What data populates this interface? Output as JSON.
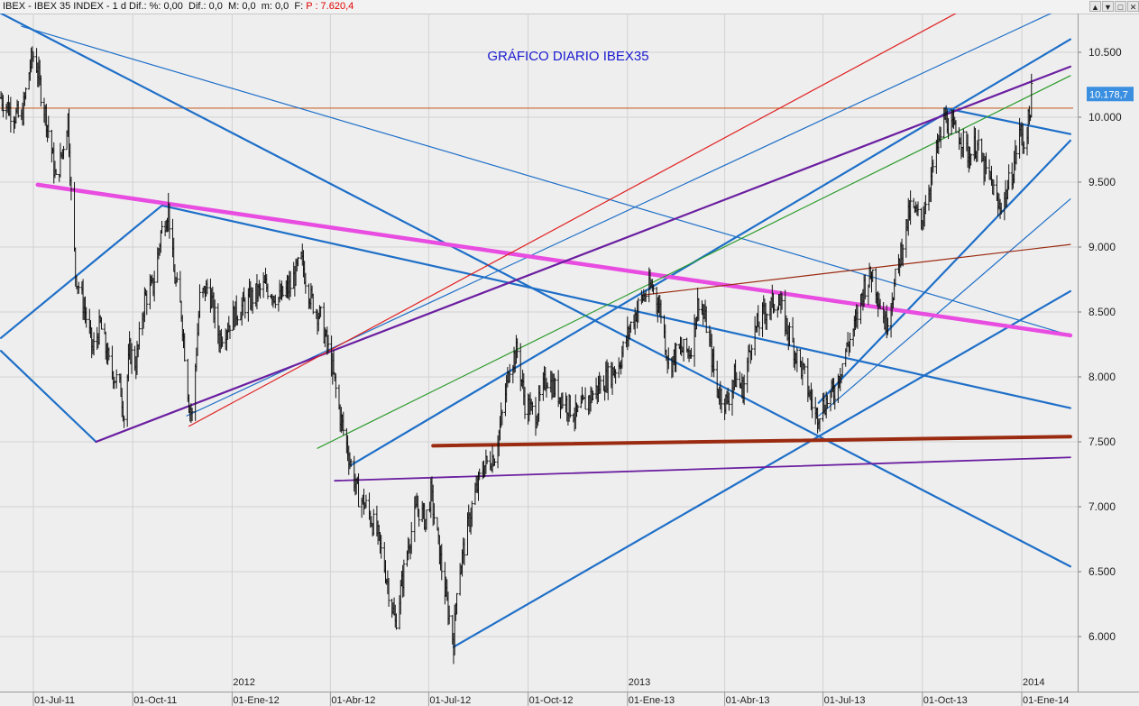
{
  "header": {
    "info": "IBEX - IBEX 35 INDEX - 1 d Dif.: %: 0,00  Dif.: 0,0  M: 0,0  m: 0,0  F:",
    "price": "P : 7.620,4",
    "window_buttons": [
      "▲",
      "▼",
      "□",
      "✕"
    ]
  },
  "colors": {
    "background": "#eeeeee",
    "trendline_blue": "#1e6fc8",
    "trendline_magenta": "#e84ce0",
    "trendline_purple": "#6a1ea0",
    "trendline_brown": "#9a2a10",
    "trendline_red": "#e02020",
    "trendline_green": "#2a9a2a",
    "hline_orange": "#c86a30",
    "price_bars": "#111111",
    "title": "#1a1ad0",
    "last_price_label": "#3b8fe0"
  },
  "chart_data": {
    "type": "line",
    "title": "GRÁFICO DIARIO IBEX35",
    "ylim": [
      5800,
      10700
    ],
    "y_ticks": [
      "10.500",
      "10.000",
      "9.500",
      "9.000",
      "8.500",
      "8.000",
      "7.500",
      "7.000",
      "6.500",
      "6.000"
    ],
    "y_tick_values": [
      10500,
      10000,
      9500,
      9000,
      8500,
      8000,
      7500,
      7000,
      6500,
      6000
    ],
    "x_labels": [
      "01-Jul-11",
      "01-Oct-11",
      "01-Ene-12",
      "01-Abr-12",
      "01-Jul-12",
      "01-Oct-12",
      "01-Ene-13",
      "01-Abr-13",
      "01-Jul-13",
      "01-Oct-13",
      "01-Ene-14"
    ],
    "x_label_dates": [
      "2011-07-01",
      "2011-10-01",
      "2012-01-01",
      "2012-04-01",
      "2012-07-01",
      "2012-10-01",
      "2013-01-01",
      "2013-04-01",
      "2013-07-01",
      "2013-10-01",
      "2014-01-01"
    ],
    "year_labels": [
      "2012",
      "2013",
      "2014"
    ],
    "year_label_dates": [
      "2012-01-01",
      "2013-01-01",
      "2014-01-01"
    ],
    "last_price_label": "10.178,7",
    "last_price": 10178.7,
    "horizontal_line": 10070,
    "series": [
      {
        "values": [
          [
            "2011-06-01",
            10150
          ],
          [
            "2011-06-10",
            10050
          ],
          [
            "2011-06-20",
            9980
          ],
          [
            "2011-06-28",
            10400
          ],
          [
            "2011-07-02",
            10500
          ],
          [
            "2011-07-08",
            10200
          ],
          [
            "2011-07-15",
            9900
          ],
          [
            "2011-07-22",
            9500
          ],
          [
            "2011-07-28",
            9750
          ],
          [
            "2011-08-02",
            10000
          ],
          [
            "2011-08-05",
            9400
          ],
          [
            "2011-08-09",
            8800
          ],
          [
            "2011-08-18",
            8500
          ],
          [
            "2011-08-25",
            8200
          ],
          [
            "2011-09-01",
            8400
          ],
          [
            "2011-09-09",
            8100
          ],
          [
            "2011-09-20",
            7900
          ],
          [
            "2011-09-23",
            7700
          ],
          [
            "2011-09-28",
            8200
          ],
          [
            "2011-10-04",
            8100
          ],
          [
            "2011-10-12",
            8600
          ],
          [
            "2011-10-20",
            8700
          ],
          [
            "2011-10-27",
            9100
          ],
          [
            "2011-11-03",
            9300
          ],
          [
            "2011-11-08",
            8800
          ],
          [
            "2011-11-15",
            8500
          ],
          [
            "2011-11-22",
            7800
          ],
          [
            "2011-11-25",
            7700
          ],
          [
            "2011-12-02",
            8600
          ],
          [
            "2011-12-10",
            8700
          ],
          [
            "2011-12-20",
            8300
          ],
          [
            "2012-01-05",
            8500
          ],
          [
            "2012-01-18",
            8600
          ],
          [
            "2012-02-01",
            8700
          ],
          [
            "2012-02-14",
            8600
          ],
          [
            "2012-02-24",
            8700
          ],
          [
            "2012-03-05",
            8900
          ],
          [
            "2012-03-14",
            8600
          ],
          [
            "2012-03-23",
            8450
          ],
          [
            "2012-04-02",
            8100
          ],
          [
            "2012-04-10",
            7700
          ],
          [
            "2012-04-18",
            7400
          ],
          [
            "2012-04-26",
            7100
          ],
          [
            "2012-05-04",
            7000
          ],
          [
            "2012-05-14",
            6800
          ],
          [
            "2012-05-22",
            6500
          ],
          [
            "2012-05-31",
            6100
          ],
          [
            "2012-06-06",
            6400
          ],
          [
            "2012-06-12",
            6700
          ],
          [
            "2012-06-20",
            7000
          ],
          [
            "2012-06-28",
            6900
          ],
          [
            "2012-07-03",
            7100
          ],
          [
            "2012-07-10",
            6700
          ],
          [
            "2012-07-17",
            6300
          ],
          [
            "2012-07-24",
            5950
          ],
          [
            "2012-07-27",
            6400
          ],
          [
            "2012-08-03",
            6700
          ],
          [
            "2012-08-10",
            7000
          ],
          [
            "2012-08-20",
            7300
          ],
          [
            "2012-08-31",
            7400
          ],
          [
            "2012-09-07",
            7700
          ],
          [
            "2012-09-14",
            8100
          ],
          [
            "2012-09-21",
            8200
          ],
          [
            "2012-09-28",
            7800
          ],
          [
            "2012-10-08",
            7700
          ],
          [
            "2012-10-18",
            8000
          ],
          [
            "2012-10-26",
            7900
          ],
          [
            "2012-11-05",
            7800
          ],
          [
            "2012-11-15",
            7700
          ],
          [
            "2012-11-23",
            7800
          ],
          [
            "2012-12-03",
            7900
          ],
          [
            "2012-12-14",
            8000
          ],
          [
            "2012-12-24",
            8100
          ],
          [
            "2013-01-04",
            8400
          ],
          [
            "2013-01-14",
            8600
          ],
          [
            "2013-01-24",
            8700
          ],
          [
            "2013-02-01",
            8500
          ],
          [
            "2013-02-08",
            8100
          ],
          [
            "2013-02-18",
            8200
          ],
          [
            "2013-02-28",
            8200
          ],
          [
            "2013-03-08",
            8600
          ],
          [
            "2013-03-15",
            8400
          ],
          [
            "2013-03-25",
            7900
          ],
          [
            "2013-04-03",
            7800
          ],
          [
            "2013-04-10",
            8000
          ],
          [
            "2013-04-18",
            7900
          ],
          [
            "2013-04-26",
            8300
          ],
          [
            "2013-05-08",
            8500
          ],
          [
            "2013-05-20",
            8600
          ],
          [
            "2013-05-28",
            8400
          ],
          [
            "2013-06-05",
            8200
          ],
          [
            "2013-06-14",
            8000
          ],
          [
            "2013-06-24",
            7700
          ],
          [
            "2013-07-03",
            7800
          ],
          [
            "2013-07-12",
            7900
          ],
          [
            "2013-07-22",
            8200
          ],
          [
            "2013-07-31",
            8400
          ],
          [
            "2013-08-08",
            8700
          ],
          [
            "2013-08-16",
            8800
          ],
          [
            "2013-08-28",
            8400
          ],
          [
            "2013-09-05",
            8700
          ],
          [
            "2013-09-12",
            9000
          ],
          [
            "2013-09-20",
            9300
          ],
          [
            "2013-09-30",
            9200
          ],
          [
            "2013-10-08",
            9500
          ],
          [
            "2013-10-16",
            9800
          ],
          [
            "2013-10-22",
            10000
          ],
          [
            "2013-10-29",
            9900
          ],
          [
            "2013-11-06",
            9850
          ],
          [
            "2013-11-13",
            9700
          ],
          [
            "2013-11-20",
            9800
          ],
          [
            "2013-11-27",
            9600
          ],
          [
            "2013-12-04",
            9500
          ],
          [
            "2013-12-10",
            9300
          ],
          [
            "2013-12-17",
            9400
          ],
          [
            "2013-12-24",
            9600
          ],
          [
            "2013-12-30",
            9900
          ],
          [
            "2014-01-03",
            9800
          ],
          [
            "2014-01-08",
            10000
          ],
          [
            "2014-01-10",
            10178.7
          ]
        ]
      }
    ],
    "trendlines": [
      {
        "color": "blue",
        "width": 2.2,
        "from": [
          "2011-06-01",
          10800
        ],
        "to": [
          "2014-02-15",
          6540
        ]
      },
      {
        "color": "blue",
        "width": 1.2,
        "from": [
          "2011-06-20",
          10700
        ],
        "to": [
          "2014-02-15",
          8320
        ]
      },
      {
        "color": "blue",
        "width": 2.2,
        "from": [
          "2011-06-01",
          8300
        ],
        "to": [
          "2011-10-28",
          9320
        ]
      },
      {
        "color": "blue",
        "width": 2.2,
        "from": [
          "2011-06-01",
          8200
        ],
        "to": [
          "2011-08-28",
          7500
        ]
      },
      {
        "color": "blue",
        "width": 2.2,
        "from": [
          "2011-10-28",
          9320
        ],
        "to": [
          "2014-02-15",
          7760
        ]
      },
      {
        "color": "blue",
        "width": 2.2,
        "from": [
          "2012-04-20",
          7320
        ],
        "to": [
          "2014-02-15",
          10600
        ]
      },
      {
        "color": "blue",
        "width": 1.2,
        "from": [
          "2011-11-20",
          7700
        ],
        "to": [
          "2014-01-28",
          10800
        ]
      },
      {
        "color": "blue",
        "width": 2.2,
        "from": [
          "2012-07-24",
          5920
        ],
        "to": [
          "2014-02-15",
          8660
        ]
      },
      {
        "color": "blue",
        "width": 2.2,
        "from": [
          "2013-06-27",
          7800
        ],
        "to": [
          "2014-02-15",
          9820
        ]
      },
      {
        "color": "blue",
        "width": 1.2,
        "from": [
          "2013-06-27",
          7700
        ],
        "to": [
          "2014-02-15",
          9370
        ]
      },
      {
        "color": "blue",
        "width": 2.2,
        "from": [
          "2013-10-22",
          10070
        ],
        "to": [
          "2014-02-15",
          9870
        ]
      },
      {
        "color": "magenta",
        "width": 4.5,
        "from": [
          "2011-07-05",
          9480
        ],
        "to": [
          "2014-02-15",
          8320
        ]
      },
      {
        "color": "purple",
        "width": 2.2,
        "from": [
          "2011-08-28",
          7500
        ],
        "to": [
          "2014-02-15",
          10390
        ]
      },
      {
        "color": "purple",
        "width": 1.8,
        "from": [
          "2012-04-05",
          7200
        ],
        "to": [
          "2014-02-15",
          7380
        ]
      },
      {
        "color": "brown",
        "width": 4,
        "from": [
          "2012-07-05",
          7470
        ],
        "to": [
          "2014-02-15",
          7540
        ]
      },
      {
        "color": "brown",
        "width": 1.2,
        "from": [
          "2013-01-15",
          8630
        ],
        "to": [
          "2014-02-15",
          9020
        ]
      },
      {
        "color": "red",
        "width": 1.2,
        "from": [
          "2011-11-22",
          7620
        ],
        "to": [
          "2013-11-01",
          10800
        ]
      },
      {
        "color": "green",
        "width": 1.2,
        "from": [
          "2012-03-20",
          7450
        ],
        "to": [
          "2014-02-15",
          10320
        ]
      }
    ]
  }
}
